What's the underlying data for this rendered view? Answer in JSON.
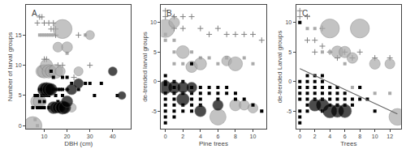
{
  "chart_data": [
    {
      "type": "scatter",
      "annotations": [
        "A."
      ],
      "xlabel": "DBH (cm)",
      "ylabel": "Number of larval groups",
      "xlim": [
        2,
        48
      ],
      "ylim": [
        -0.5,
        20
      ],
      "xticks": [
        10,
        20,
        30,
        40
      ],
      "yticks": [
        0,
        5,
        10,
        15
      ],
      "grid": false,
      "series": [
        {
          "marker": "cross",
          "color": "#808080",
          "x": [
            7,
            8,
            9,
            10,
            10,
            11,
            12,
            13,
            14,
            15,
            15,
            16,
            18,
            20,
            23,
            25,
            30
          ],
          "y": [
            17,
            18,
            18,
            17,
            11,
            11,
            17,
            16,
            17,
            16,
            15,
            10,
            10,
            6,
            8,
            15,
            10
          ]
        },
        {
          "marker": "square",
          "color": "#aaaaaa",
          "x": [
            6,
            7,
            8,
            9,
            10,
            11,
            12,
            13,
            14,
            20,
            28
          ],
          "y": [
            1,
            0,
            15,
            15,
            15,
            15,
            15,
            15,
            15,
            12,
            15
          ]
        },
        {
          "marker": "circle",
          "color": "#aaaaaa",
          "x": [
            5,
            7,
            8,
            9,
            10,
            11,
            12,
            13,
            15,
            16,
            17,
            18,
            20,
            22,
            25,
            30
          ],
          "y": [
            0,
            4,
            4,
            9,
            9,
            10,
            9,
            9,
            9,
            13,
            9,
            16,
            13,
            3,
            9,
            15
          ],
          "size": [
            100,
            55,
            50,
            45,
            55,
            45,
            55,
            40,
            60,
            30,
            30,
            110,
            35,
            25,
            25,
            25
          ]
        },
        {
          "marker": "square",
          "color": "#000000",
          "x": [
            5,
            6,
            7,
            7,
            8,
            8,
            8,
            9,
            9,
            9,
            10,
            10,
            10,
            11,
            12,
            12,
            13,
            14,
            14,
            15,
            15,
            16,
            16,
            17,
            18,
            18,
            18,
            20,
            20,
            22,
            25,
            28,
            30,
            32,
            35,
            42
          ],
          "y": [
            3,
            5,
            3,
            5,
            3,
            4,
            6,
            3,
            5,
            6,
            3,
            4,
            5,
            5,
            5,
            3,
            9,
            6,
            8,
            5,
            6,
            4,
            6,
            6,
            5,
            6,
            8,
            6,
            8,
            7,
            6,
            7,
            7,
            5,
            7,
            5
          ]
        },
        {
          "marker": "circle",
          "color": "#000000",
          "x": [
            10,
            11,
            12,
            13,
            14,
            15,
            16,
            17,
            18,
            19,
            20,
            22,
            25,
            40,
            44
          ],
          "y": [
            6,
            6,
            6,
            6,
            3,
            3,
            3,
            3,
            3,
            3,
            4,
            6,
            7,
            9,
            5
          ],
          "size": [
            55,
            60,
            50,
            45,
            45,
            40,
            35,
            30,
            55,
            45,
            40,
            35,
            30,
            25,
            20
          ]
        }
      ]
    },
    {
      "type": "scatter",
      "annotations": [
        "B."
      ],
      "xlabel": "Pine trees",
      "ylabel": "de-trended larval groups",
      "xlim": [
        -0.5,
        11.5
      ],
      "ylim": [
        -8,
        13
      ],
      "xticks": [
        0,
        2,
        4,
        6,
        8,
        10
      ],
      "yticks": [
        -5,
        0,
        5,
        10
      ],
      "grid": false,
      "series": [
        {
          "marker": "cross",
          "color": "#808080",
          "x": [
            0,
            0,
            1,
            1,
            2,
            2,
            3,
            4,
            5,
            6,
            7,
            8,
            9,
            10,
            11
          ],
          "y": [
            12,
            11,
            11,
            9,
            11,
            9,
            11,
            9,
            8,
            9,
            8,
            8,
            8,
            8,
            7
          ]
        },
        {
          "marker": "square",
          "color": "#aaaaaa",
          "x": [
            0,
            0,
            1,
            1,
            1,
            2,
            3,
            3,
            4,
            5,
            6,
            7,
            9,
            10,
            11
          ],
          "y": [
            8,
            7,
            7,
            5,
            3,
            3,
            5,
            3,
            4,
            4,
            3,
            4,
            4,
            3,
            -5
          ]
        },
        {
          "marker": "circle",
          "color": "#aaaaaa",
          "x": [
            0,
            1,
            2,
            3,
            4,
            6,
            7,
            8,
            8,
            9,
            10
          ],
          "y": [
            9,
            10,
            5,
            2.5,
            3,
            -6,
            3.5,
            3,
            -4,
            -4,
            -4.5
          ],
          "size": [
            100,
            35,
            50,
            40,
            45,
            80,
            30,
            60,
            40,
            30,
            30
          ]
        },
        {
          "marker": "square",
          "color": "#000000",
          "x": [
            0,
            0,
            0,
            0,
            0,
            0,
            0,
            0,
            0,
            1,
            1,
            1,
            1,
            1,
            1,
            1,
            2,
            2,
            2,
            2,
            3,
            3,
            3,
            3,
            3,
            3,
            4,
            4,
            4,
            4,
            5,
            5,
            6,
            6,
            6,
            7,
            7,
            8,
            8,
            9,
            10,
            11
          ],
          "y": [
            1,
            0,
            -0.5,
            -2,
            -3,
            -4,
            -5,
            -6,
            -7,
            0,
            -1,
            -2,
            -3,
            -4,
            -5,
            -6,
            0,
            -2,
            -4,
            -5,
            3,
            -1,
            -2,
            -3,
            -4,
            -5,
            -1,
            -2,
            -3,
            -4,
            -1,
            -2,
            -1,
            -2,
            -3,
            -1,
            -2,
            -2,
            -3,
            -3,
            -4,
            -5
          ]
        },
        {
          "marker": "circle",
          "color": "#000000",
          "x": [
            0,
            1,
            2,
            2,
            3,
            4,
            6
          ],
          "y": [
            -1,
            -1,
            -1,
            -3,
            -1,
            -5,
            -4
          ],
          "size": [
            55,
            45,
            40,
            50,
            35,
            40,
            35
          ]
        }
      ]
    },
    {
      "type": "scatter",
      "annotations": [
        "C."
      ],
      "xlabel": "Trees",
      "ylabel": "de-trended Larval groups",
      "xlim": [
        -0.5,
        13.5
      ],
      "ylim": [
        -8,
        13
      ],
      "xticks": [
        0,
        2,
        4,
        6,
        8,
        10,
        12
      ],
      "yticks": [
        -5,
        0,
        5,
        10
      ],
      "grid": false,
      "series": [
        {
          "marker": "cross",
          "color": "#808080",
          "x": [
            0,
            0,
            1,
            1,
            2,
            2,
            3,
            3,
            4,
            5,
            6,
            7,
            8,
            10,
            12
          ],
          "y": [
            12,
            11,
            11,
            7,
            7,
            5,
            9,
            6,
            5,
            4,
            5,
            4,
            5,
            4,
            4
          ]
        },
        {
          "marker": "square",
          "color": "#aaaaaa",
          "x": [
            0,
            1,
            2,
            2,
            3,
            3,
            4,
            4,
            5,
            6,
            7,
            8,
            10,
            12
          ],
          "y": [
            10,
            9,
            9,
            -1,
            5,
            -1,
            5,
            -1,
            -1,
            3,
            -1,
            -1,
            -2,
            -2
          ]
        },
        {
          "marker": "circle",
          "color": "#aaaaaa",
          "x": [
            4,
            8,
            13,
            5,
            6,
            7,
            10,
            12
          ],
          "y": [
            9,
            9,
            -6,
            5,
            5,
            4,
            3,
            3
          ],
          "size": [
            110,
            110,
            85,
            45,
            40,
            35,
            35,
            30
          ]
        },
        {
          "marker": "square",
          "color": "#000000",
          "x": [
            0,
            0,
            0,
            0,
            0,
            0,
            0,
            0,
            1,
            1,
            1,
            1,
            1,
            1,
            1,
            2,
            2,
            2,
            2,
            2,
            3,
            3,
            3,
            3,
            3,
            3,
            4,
            4,
            4,
            4,
            5,
            5,
            5,
            5,
            6,
            6,
            6,
            7,
            7,
            8,
            8,
            9,
            10
          ],
          "y": [
            10,
            0,
            -1,
            -2,
            -3,
            -5,
            -6,
            -7,
            1,
            0,
            -1,
            -2,
            -3,
            -4,
            -5,
            1,
            0,
            -1,
            -2,
            -3,
            1,
            0,
            -1,
            -2,
            -3,
            -5,
            -1,
            -2,
            -3,
            -4,
            -1,
            -2,
            -3,
            -4,
            -2,
            -3,
            -4,
            -3,
            -4,
            -1,
            -3,
            -3,
            -5
          ]
        },
        {
          "marker": "circle",
          "color": "#000000",
          "x": [
            2,
            3,
            4,
            5,
            6
          ],
          "y": [
            -4,
            -4,
            -5,
            -5,
            -5
          ],
          "size": [
            45,
            50,
            60,
            50,
            55
          ]
        },
        {
          "type": "line",
          "color": "#666666",
          "x": [
            0,
            13
          ],
          "y": [
            2.2,
            -5.5
          ]
        }
      ]
    }
  ]
}
